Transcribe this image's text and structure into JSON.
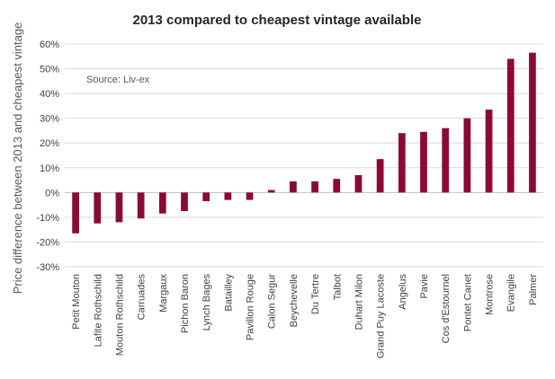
{
  "chart_data": {
    "type": "bar",
    "title": "2013 compared to cheapest vintage available",
    "ylabel": "Price difference between 2013 and cheapest vintage",
    "xlabel": "",
    "annotation": "Source: Liv-ex",
    "ylim": [
      -30,
      60
    ],
    "yticks": [
      -30,
      -20,
      -10,
      0,
      10,
      20,
      30,
      40,
      50,
      60
    ],
    "ytick_labels": [
      "-30%",
      "-20%",
      "-10%",
      "0%",
      "10%",
      "20%",
      "30%",
      "40%",
      "50%",
      "60%"
    ],
    "grid": true,
    "legend": "none",
    "bar_color": "#8B0A33",
    "categories": [
      "Petit Mouton",
      "Lafite Rothschild",
      "Mouton Rothschild",
      "Carruades",
      "Margaux",
      "Pichon Baron",
      "Lynch Bages",
      "Batailley",
      "Pavillon Rouge",
      "Calon Segur",
      "Beychevelle",
      "Du Tertre",
      "Talbot",
      "Duhart Milon",
      "Grand Puy Lacoste",
      "Angelus",
      "Pavie",
      "Cos d'Estournel",
      "Pontet Canet",
      "Montrose",
      "Evangile",
      "Palmer"
    ],
    "values": [
      -16.5,
      -12.5,
      -12,
      -10.5,
      -8.5,
      -7.5,
      -3.5,
      -3,
      -3,
      1,
      4.5,
      4.5,
      5.5,
      7,
      13.5,
      24,
      24.5,
      26,
      30,
      33.5,
      54,
      56.5
    ]
  }
}
